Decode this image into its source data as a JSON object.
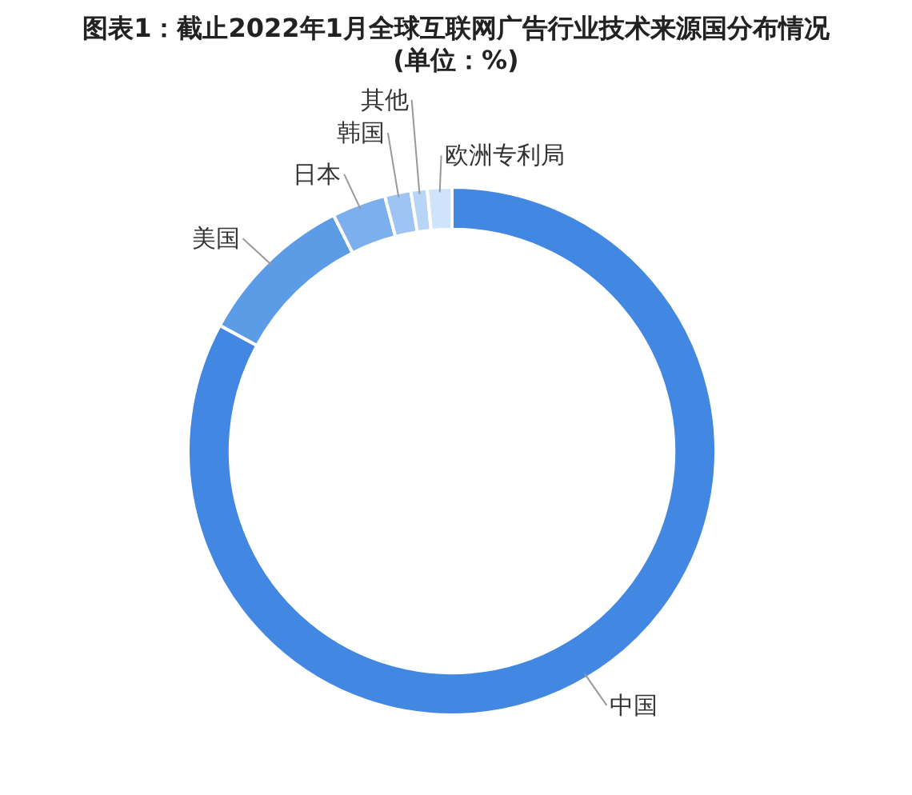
{
  "chart_data": {
    "type": "donut",
    "title": "图表1：截止2022年1月全球互联网广告行业技术来源国分布情况(单位：%)",
    "categories": [
      "中国",
      "美国",
      "日本",
      "韩国",
      "其他",
      "欧洲专利局"
    ],
    "values": [
      82.9,
      9.7,
      3.3,
      1.6,
      1.0,
      1.5
    ],
    "colors": [
      "#4287e1",
      "#5c9be6",
      "#7cafee",
      "#9dc4f3",
      "#b8d5f8",
      "#cfe3fb"
    ]
  }
}
